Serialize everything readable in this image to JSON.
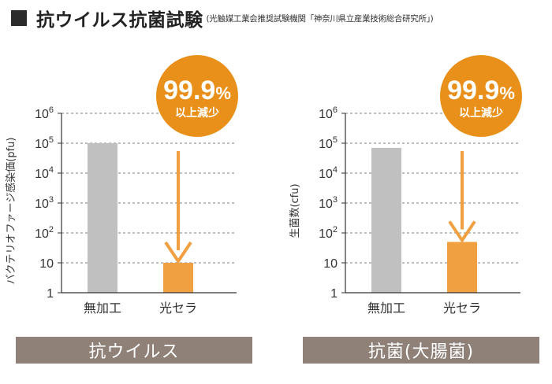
{
  "header": {
    "title": "抗ウイルス抗菌試験",
    "source": "(光触媒工業会推奨試験機関「神奈川県立産業技術総合研究所」)"
  },
  "colors": {
    "control": "#c0c0c0",
    "treated": "#f0a040",
    "badge": "#e8901a",
    "arrow": "#f0a040",
    "footer": "#8f8178"
  },
  "chart_data": [
    {
      "type": "bar",
      "yscale": "log",
      "ylim": [
        1,
        1000000
      ],
      "yticks": [
        "1",
        "10",
        "10^2",
        "10^3",
        "10^4",
        "10^5",
        "10^6"
      ],
      "ylabel": "バクテリオファージ感染価(pfu)",
      "categories": [
        "無加工",
        "光セラ"
      ],
      "values": [
        100000,
        10
      ],
      "grid": "dashed-horizontal",
      "annotation": {
        "value": "99.9",
        "unit": "%",
        "label": "以上減少"
      },
      "footer_label": "抗ウイルス"
    },
    {
      "type": "bar",
      "yscale": "log",
      "ylim": [
        1,
        1000000
      ],
      "yticks": [
        "1",
        "10",
        "10^2",
        "10^3",
        "10^4",
        "10^5",
        "10^6"
      ],
      "ylabel": "生菌数(cfu)",
      "categories": [
        "無加工",
        "光セラ"
      ],
      "values": [
        70000,
        50
      ],
      "grid": "dashed-horizontal",
      "annotation": {
        "value": "99.9",
        "unit": "%",
        "label": "以上減少"
      },
      "footer_label": "抗菌(大腸菌)"
    }
  ]
}
